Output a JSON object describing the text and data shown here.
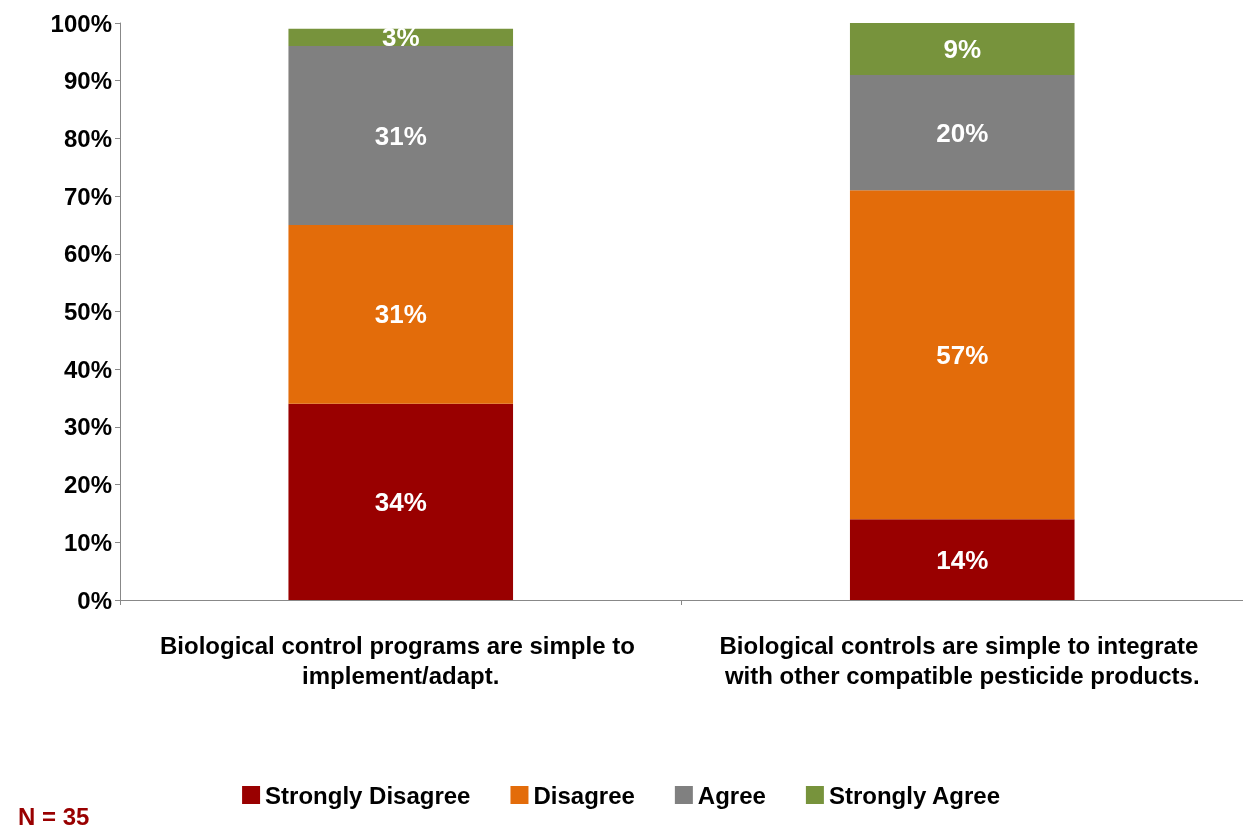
{
  "chart_data": {
    "type": "bar",
    "stacked": true,
    "categories": [
      "Biological control programs are simple to implement/adapt.",
      "Biological controls are simple to integrate with other compatible pesticide products."
    ],
    "series": [
      {
        "name": "Strongly Disagree",
        "color": "#990000",
        "values": [
          34,
          14
        ],
        "value_labels": [
          "34%",
          "14%"
        ]
      },
      {
        "name": "Disagree",
        "color": "#e36c0a",
        "values": [
          31,
          57
        ],
        "value_labels": [
          "31%",
          "57%"
        ]
      },
      {
        "name": "Agree",
        "color": "#808080",
        "values": [
          31,
          20
        ],
        "value_labels": [
          "31%",
          "20%"
        ]
      },
      {
        "name": "Strongly Agree",
        "color": "#77933c",
        "values": [
          3,
          9
        ],
        "value_labels": [
          "3%",
          "9%"
        ]
      }
    ],
    "ylim": [
      0,
      100
    ],
    "yticks": [
      {
        "value": 0,
        "label": "0%"
      },
      {
        "value": 10,
        "label": "10%"
      },
      {
        "value": 20,
        "label": "20%"
      },
      {
        "value": 30,
        "label": "30%"
      },
      {
        "value": 40,
        "label": "40%"
      },
      {
        "value": 50,
        "label": "50%"
      },
      {
        "value": 60,
        "label": "60%"
      },
      {
        "value": 70,
        "label": "70%"
      },
      {
        "value": 80,
        "label": "80%"
      },
      {
        "value": 90,
        "label": "90%"
      },
      {
        "value": 100,
        "label": "100%"
      }
    ],
    "grid": false,
    "legend": "bottom",
    "annotations": [
      "N = 35"
    ]
  }
}
